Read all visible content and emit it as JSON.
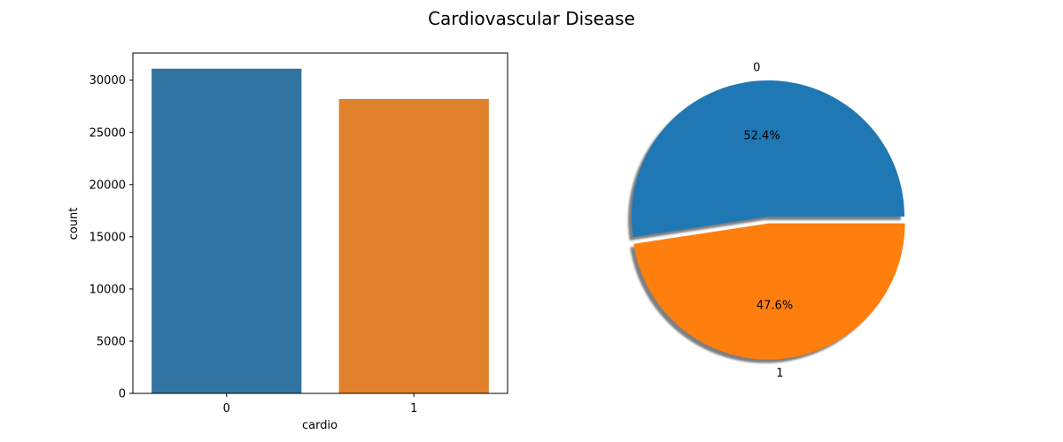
{
  "figure": {
    "title": "Cardiovascular Disease"
  },
  "chart_data": [
    {
      "type": "bar",
      "xlabel": "cardio",
      "ylabel": "count",
      "categories": [
        "0",
        "1"
      ],
      "values": [
        31100,
        28200
      ],
      "ylim": [
        0,
        32600
      ],
      "yticks": [
        0,
        5000,
        10000,
        15000,
        20000,
        25000,
        30000
      ],
      "colors": [
        "#3274a1",
        "#e1812c"
      ],
      "grid": false
    },
    {
      "type": "pie",
      "labels": [
        "0",
        "1"
      ],
      "pct_labels": [
        "52.4%",
        "47.6%"
      ],
      "values": [
        52.4,
        47.6
      ],
      "colors": [
        "#1f77b4",
        "#ff7f0e"
      ],
      "explode": [
        0,
        0.05
      ],
      "shadow": true
    }
  ]
}
